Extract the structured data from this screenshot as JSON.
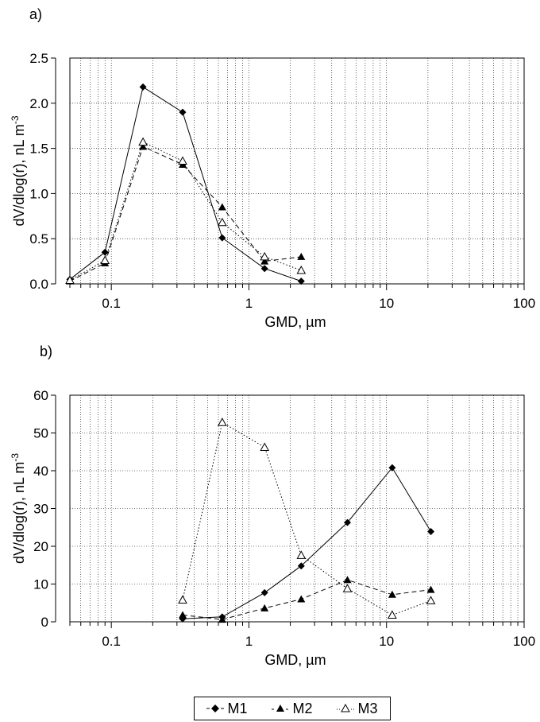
{
  "chart_data": [
    {
      "panel_label": "a)",
      "type": "line",
      "x_scale": "log",
      "xlim": [
        0.05,
        100
      ],
      "ylim": [
        0,
        2.5
      ],
      "xlabel": "GMD, µm",
      "ylabel": "dV/dlog(r), nL m",
      "ylabel_superscript": "-3",
      "x_ticks": [
        0.1,
        1,
        10,
        100
      ],
      "x_tick_labels": [
        "0.1",
        "1",
        "10",
        "100"
      ],
      "y_ticks": [
        0,
        0.5,
        1.0,
        1.5,
        2.0,
        2.5
      ],
      "y_tick_labels": [
        "0.0",
        "0.5",
        "1.0",
        "1.5",
        "2.0",
        "2.5"
      ],
      "grid": true,
      "series": [
        {
          "name": "M1",
          "x": [
            0.05,
            0.09,
            0.17,
            0.33,
            0.64,
            1.3,
            2.4
          ],
          "y": [
            0.05,
            0.35,
            2.18,
            1.9,
            0.51,
            0.17,
            0.03
          ]
        },
        {
          "name": "M2",
          "x": [
            0.05,
            0.09,
            0.17,
            0.33,
            0.64,
            1.3,
            2.4
          ],
          "y": [
            0.03,
            0.23,
            1.52,
            1.32,
            0.85,
            0.25,
            0.3
          ]
        },
        {
          "name": "M3",
          "x": [
            0.05,
            0.09,
            0.17,
            0.33,
            0.64,
            1.3,
            2.4
          ],
          "y": [
            0.04,
            0.26,
            1.57,
            1.36,
            0.68,
            0.3,
            0.15
          ]
        }
      ]
    },
    {
      "panel_label": "b)",
      "type": "line",
      "x_scale": "log",
      "xlim": [
        0.05,
        100
      ],
      "ylim": [
        0,
        60
      ],
      "xlabel": "GMD, µm",
      "ylabel": "dV/dlog(r), nL m",
      "ylabel_superscript": "-3",
      "x_ticks": [
        0.1,
        1,
        10,
        100
      ],
      "x_tick_labels": [
        "0.1",
        "1",
        "10",
        "100"
      ],
      "y_ticks": [
        0,
        10,
        20,
        30,
        40,
        50,
        60
      ],
      "y_tick_labels": [
        "0",
        "10",
        "20",
        "30",
        "40",
        "50",
        "60"
      ],
      "grid": true,
      "series": [
        {
          "name": "M1",
          "x": [
            0.33,
            0.64,
            1.3,
            2.4,
            5.2,
            11,
            21
          ],
          "y": [
            0.8,
            1.3,
            7.7,
            14.8,
            26.3,
            40.8,
            23.9
          ]
        },
        {
          "name": "M2",
          "x": [
            0.33,
            0.64,
            1.3,
            2.4,
            5.2,
            11,
            21
          ],
          "y": [
            1.8,
            0.6,
            3.6,
            6.0,
            11.1,
            7.2,
            8.5
          ]
        },
        {
          "name": "M3",
          "x": [
            0.33,
            0.64,
            1.3,
            2.4,
            5.2,
            11,
            21
          ],
          "y": [
            5.8,
            52.8,
            46.2,
            17.6,
            8.8,
            1.8,
            5.6
          ]
        }
      ]
    }
  ],
  "legend": {
    "entries": [
      {
        "label": "M1",
        "marker": "filled-diamond",
        "line": "solid"
      },
      {
        "label": "M2",
        "marker": "filled-triangle",
        "line": "dashed"
      },
      {
        "label": "M3",
        "marker": "open-triangle",
        "line": "dotted"
      }
    ]
  }
}
